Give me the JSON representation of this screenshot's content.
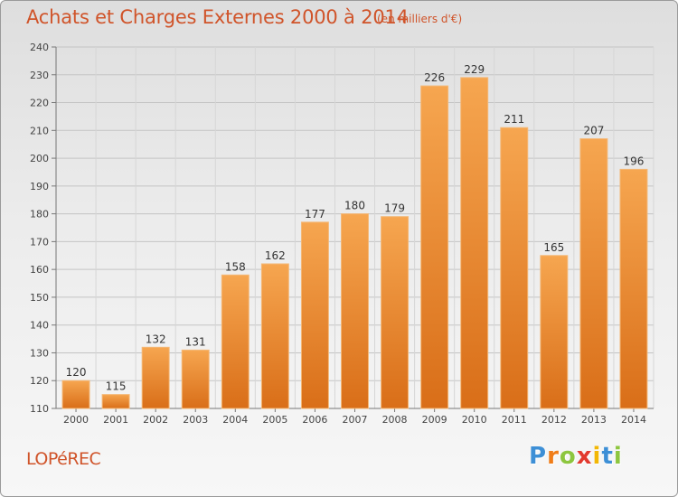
{
  "title": "Achats et Charges Externes 2000 à 2014",
  "subtitle": "(en milliers d'€)",
  "commune": "LOPéREC",
  "brand": {
    "letters": [
      "P",
      "r",
      "o",
      "x",
      "i",
      "t",
      "i"
    ],
    "colors": [
      "#3d8fd6",
      "#f07d18",
      "#8dc63f",
      "#e23a2f",
      "#f2b705",
      "#3d8fd6",
      "#8dc63f"
    ]
  },
  "colors": {
    "bar_top": "#f6a650",
    "bar_bottom": "#d96e18",
    "title": "#d0542a"
  },
  "chart_data": {
    "type": "bar",
    "categories": [
      "2000",
      "2001",
      "2002",
      "2003",
      "2004",
      "2005",
      "2006",
      "2007",
      "2008",
      "2009",
      "2010",
      "2011",
      "2012",
      "2013",
      "2014"
    ],
    "values": [
      120,
      115,
      132,
      131,
      158,
      162,
      177,
      180,
      179,
      226,
      229,
      211,
      165,
      207,
      196
    ],
    "ylim": [
      110,
      240
    ],
    "yticks": [
      110,
      120,
      130,
      140,
      150,
      160,
      170,
      180,
      190,
      200,
      210,
      220,
      230,
      240
    ],
    "grid": true,
    "data_labels": true
  }
}
